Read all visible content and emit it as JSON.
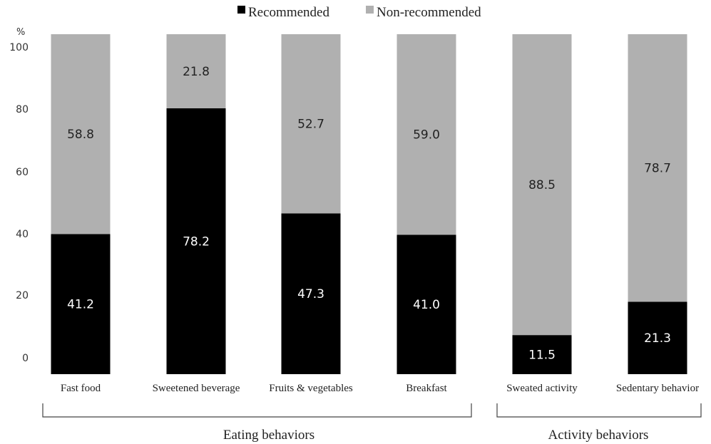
{
  "chart_data": {
    "type": "bar",
    "stacked": true,
    "unit_label": "%",
    "ylim": [
      0,
      100
    ],
    "yticks": [
      0,
      20,
      40,
      60,
      80,
      100
    ],
    "categories": [
      "Fast food",
      "Sweetened beverage",
      "Fruits & vegetables",
      "Breakfast",
      "Sweated activity",
      "Sedentary behavior"
    ],
    "series": [
      {
        "name": "Recommended",
        "color": "#000000",
        "label_color": "#ffffff",
        "values": [
          41.2,
          78.2,
          47.3,
          41.0,
          11.5,
          21.3
        ],
        "labels": [
          "41.2",
          "78.2",
          "47.3",
          "41.0",
          "11.5",
          "21.3"
        ]
      },
      {
        "name": "Non-recommended",
        "color": "#b0b0b0",
        "label_color": "#222222",
        "values": [
          58.8,
          21.8,
          52.7,
          59.0,
          88.5,
          78.7
        ],
        "labels": [
          "58.8",
          "21.8",
          "52.7",
          "59.0",
          "88.5",
          "78.7"
        ]
      }
    ],
    "groups": [
      {
        "label": "Eating behaviors",
        "categories": [
          0,
          1,
          2,
          3
        ]
      },
      {
        "label": "Activity behaviors",
        "categories": [
          4,
          5
        ]
      }
    ],
    "legend_position": "top-center",
    "grid": false
  }
}
